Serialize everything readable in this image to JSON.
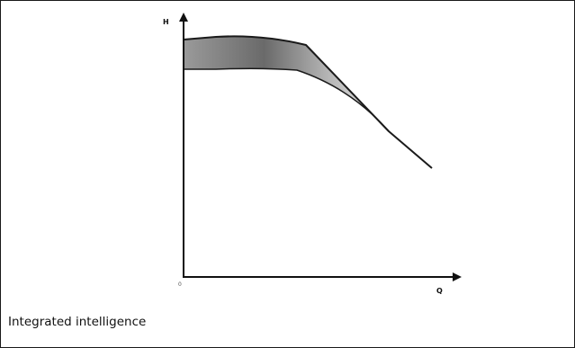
{
  "diagram": {
    "y_axis_label": "H",
    "x_axis_label": "Q",
    "origin_label": "0",
    "band_colors": {
      "dark": "#6a6a6a",
      "mid": "#a8a8a8",
      "light": "#f2f2f2",
      "outline": "#1a1a1a"
    }
  },
  "caption": "Integrated intelligence"
}
